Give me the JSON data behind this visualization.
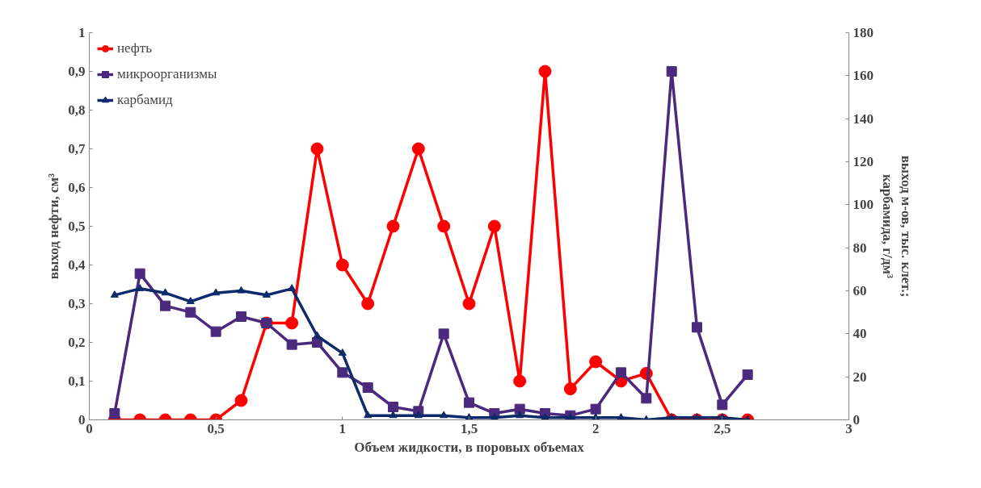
{
  "chart_data": {
    "type": "line",
    "xlabel": "Объем жидкости, в поровых объемах",
    "ylabel": "выход нефти, см³",
    "y2label": "выход м-ов, тыс. клет.;\nкарбамида, г/дм³",
    "x": [
      0.1,
      0.2,
      0.3,
      0.4,
      0.5,
      0.6,
      0.7,
      0.8,
      0.9,
      1.0,
      1.1,
      1.2,
      1.3,
      1.4,
      1.5,
      1.6,
      1.7,
      1.8,
      1.9,
      2.0,
      2.1,
      2.2,
      2.3,
      2.4,
      2.5,
      2.6
    ],
    "series": [
      {
        "name": "нефть",
        "color": "#ff0000",
        "marker": "circle",
        "values": [
          0,
          0,
          0,
          0,
          0,
          0.05,
          0.25,
          0.25,
          0.7,
          0.4,
          0.3,
          0.5,
          0.7,
          0.5,
          0.3,
          0.5,
          0.1,
          0.9,
          0.08,
          0.15,
          0.1,
          0.12,
          0,
          0,
          0,
          0
        ]
      },
      {
        "name": "микроорганизмы",
        "color": "#4b2a7e",
        "marker": "square",
        "axis": "y2",
        "values": [
          3,
          68,
          53,
          50,
          41,
          48,
          45,
          35,
          36,
          22,
          15,
          6,
          4,
          40,
          8,
          3,
          5,
          3,
          2,
          5,
          22,
          10,
          162,
          43,
          7,
          21
        ]
      },
      {
        "name": "карбамид",
        "color": "#0d2a6b",
        "marker": "triangle",
        "axis": "y2",
        "values": [
          58,
          61,
          59,
          55,
          59,
          60,
          58,
          61,
          39,
          31,
          2,
          2,
          2,
          2,
          1,
          1,
          2,
          1,
          1,
          1,
          1,
          0,
          1,
          1,
          1,
          0
        ]
      }
    ],
    "xlim": [
      0,
      3
    ],
    "xticks": [
      0,
      {
        "value": 0.5,
        "label": "0,5"
      },
      1,
      {
        "value": 1.5,
        "label": "1,5"
      },
      2,
      {
        "value": 2.5,
        "label": "2,5"
      },
      3
    ],
    "ylim": [
      0,
      1
    ],
    "yticks": [
      0,
      {
        "value": 0.1,
        "label": "0,1"
      },
      {
        "value": 0.2,
        "label": "0,2"
      },
      {
        "value": 0.3,
        "label": "0,3"
      },
      {
        "value": 0.4,
        "label": "0,4"
      },
      {
        "value": 0.5,
        "label": "0,5"
      },
      {
        "value": 0.6,
        "label": "0,6"
      },
      {
        "value": 0.7,
        "label": "0,7"
      },
      {
        "value": 0.8,
        "label": "0,8"
      },
      {
        "value": 0.9,
        "label": "0,9"
      },
      1
    ],
    "y2lim": [
      0,
      180
    ],
    "y2ticks": [
      0,
      20,
      40,
      60,
      80,
      100,
      120,
      140,
      160,
      180
    ],
    "legend": "top left",
    "grid": false
  }
}
